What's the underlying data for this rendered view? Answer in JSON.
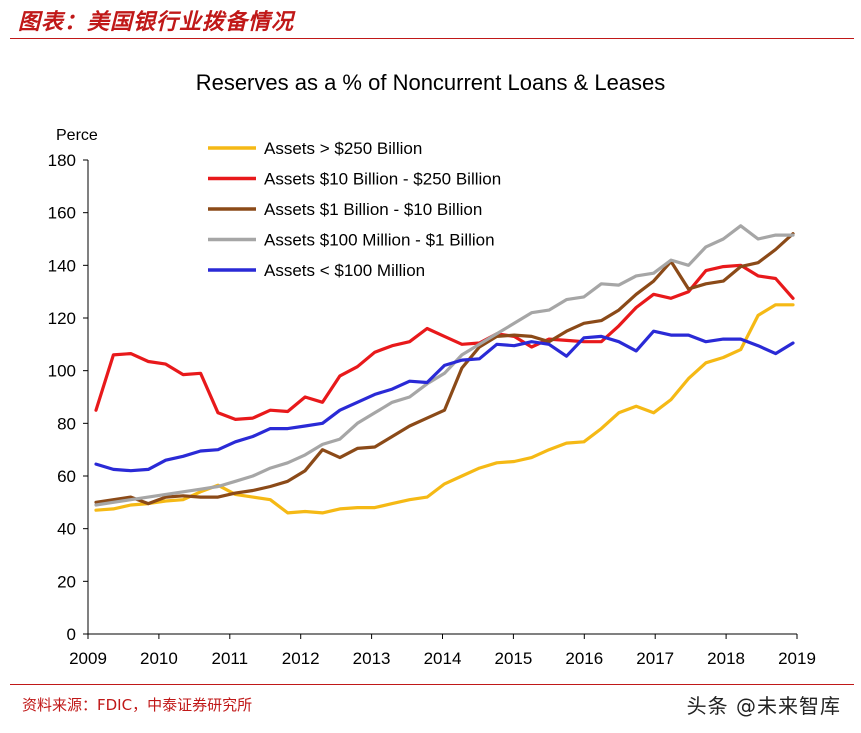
{
  "header": {
    "title": "图表：美国银行业拨备情况"
  },
  "footer": {
    "source": "资料来源：FDIC，中泰证券研究所",
    "watermark": "头条 @未来智库"
  },
  "colors": {
    "accent": "#c01818",
    "series": [
      "#f5b915",
      "#e8191b",
      "#8b4a18",
      "#a6a6a6",
      "#2a2ad6"
    ]
  },
  "chart_data": {
    "type": "line",
    "title": "Reserves as a % of Noncurrent Loans & Leases",
    "ylabel": "Perce",
    "xlabel": "",
    "ylim": [
      0,
      180
    ],
    "yticks": [
      0,
      20,
      40,
      60,
      80,
      100,
      120,
      140,
      160,
      180
    ],
    "xlim": [
      2009,
      2019
    ],
    "xticks": [
      "2009",
      "2010",
      "2011",
      "2012",
      "2013",
      "2014",
      "2015",
      "2016",
      "2017",
      "2018",
      "2019"
    ],
    "legend_position": "top-left",
    "grid": false,
    "series": [
      {
        "name": "Assets > $250 Billion",
        "color": "#f5b915",
        "values": [
          47,
          47.5,
          49,
          49.5,
          50.5,
          51,
          54,
          56.5,
          53,
          52,
          51,
          46,
          46.5,
          46,
          47.5,
          48,
          48,
          49.5,
          51,
          52,
          57,
          60,
          63,
          65,
          65.5,
          67,
          70,
          72.5,
          73,
          78,
          84,
          86.5,
          84,
          89,
          97,
          103,
          105,
          108,
          121,
          125,
          125
        ]
      },
      {
        "name": "Assets  $10 Billion - $250 Billion",
        "color": "#e8191b",
        "values": [
          85,
          106,
          106.5,
          103.5,
          102.5,
          98.5,
          99,
          84,
          81.5,
          82,
          85,
          84.5,
          90,
          88,
          98,
          101.5,
          107,
          109.5,
          111,
          116,
          113,
          110,
          110.5,
          114,
          113,
          109,
          112,
          111.5,
          111,
          111,
          117,
          124,
          129,
          127.5,
          130,
          138,
          139.5,
          140,
          136,
          135,
          127.5
        ]
      },
      {
        "name": "Assets $1 Billion - $10 Billion",
        "color": "#8b4a18",
        "values": [
          50,
          51,
          52,
          49.5,
          52,
          52.5,
          52,
          52,
          53.5,
          54.5,
          56,
          58,
          62,
          70,
          67,
          70.5,
          71,
          75,
          79,
          82,
          85,
          101,
          109,
          113,
          113.5,
          113,
          111,
          115,
          118,
          119,
          123,
          129,
          134,
          141.5,
          131,
          133,
          134,
          139.5,
          141,
          146,
          152
        ]
      },
      {
        "name": "Assets $100 Million - $1 Billion",
        "color": "#a6a6a6",
        "values": [
          49,
          50,
          51,
          52,
          53,
          54,
          55,
          56,
          58,
          60,
          63,
          65,
          68,
          72,
          74,
          80,
          84,
          88,
          90,
          95,
          99,
          106,
          110,
          114,
          118,
          122,
          123,
          127,
          128,
          133,
          132.5,
          136,
          137,
          142,
          140,
          147,
          150,
          155,
          150,
          151.5,
          151.5
        ]
      },
      {
        "name": "Assets < $100 Million",
        "color": "#2a2ad6",
        "values": [
          64.5,
          62.5,
          62,
          62.5,
          66,
          67.5,
          69.5,
          70,
          73,
          75,
          78,
          78,
          79,
          80,
          85,
          88,
          91,
          93,
          96,
          95.5,
          102,
          104,
          104.5,
          110,
          109.5,
          111,
          110,
          105.5,
          112.5,
          113,
          111,
          107.5,
          115,
          113.5,
          113.5,
          111,
          112,
          112,
          109.5,
          106.5,
          110.5
        ]
      }
    ]
  }
}
